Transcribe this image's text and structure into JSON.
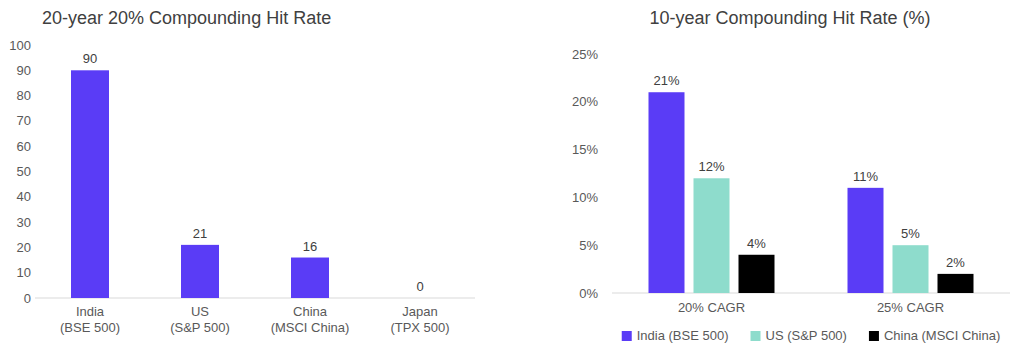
{
  "chart_data": [
    {
      "type": "bar",
      "title": "20-year 20% Compounding Hit Rate",
      "categories": [
        "India (BSE 500)",
        "US (S&P 500)",
        "China (MSCI China)",
        "Japan (TPX 500)"
      ],
      "values": [
        90,
        21,
        16,
        0
      ],
      "color": "#5a3cf6",
      "ylim": [
        0,
        100
      ],
      "yticks": [
        0,
        10,
        20,
        30,
        40,
        50,
        60,
        70,
        80,
        90,
        100
      ],
      "grid": false,
      "data_labels": true
    },
    {
      "type": "bar",
      "title": "10-year Compounding Hit Rate (%)",
      "categories": [
        "20% CAGR",
        "25% CAGR"
      ],
      "series": [
        {
          "name": "India (BSE 500)",
          "color": "#5a3cf6",
          "values": [
            21,
            11
          ],
          "value_labels": [
            "21%",
            "11%"
          ]
        },
        {
          "name": "US (S&P 500)",
          "color": "#8edccc",
          "values": [
            12,
            5
          ],
          "value_labels": [
            "12%",
            "5%"
          ]
        },
        {
          "name": "China (MSCI China)",
          "color": "#000000",
          "values": [
            4,
            2
          ],
          "value_labels": [
            "4%",
            "2%"
          ]
        }
      ],
      "ylim": [
        0,
        25
      ],
      "yticks": [
        {
          "value": 0,
          "label": "0%"
        },
        {
          "value": 5,
          "label": "5%"
        },
        {
          "value": 10,
          "label": "10%"
        },
        {
          "value": 15,
          "label": "15%"
        },
        {
          "value": 20,
          "label": "20%"
        },
        {
          "value": 25,
          "label": "25%"
        }
      ],
      "grid": false,
      "data_labels": true,
      "legend": "bottom"
    }
  ]
}
